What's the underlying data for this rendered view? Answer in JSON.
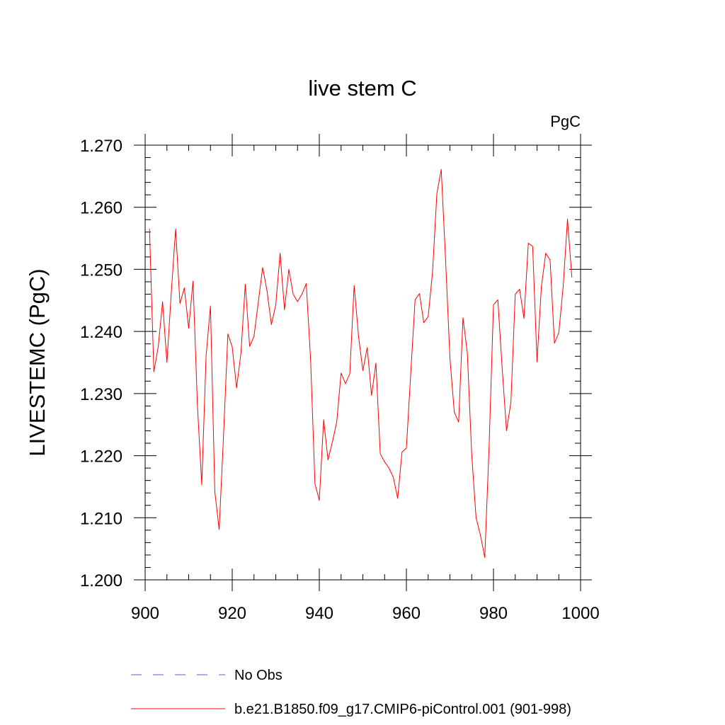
{
  "chart_data": {
    "type": "line",
    "title": "live stem C",
    "units_label": "PgC",
    "ylabel": "LIVESTEMC  (PgC)",
    "xlabel": "",
    "xlim": [
      900,
      1000
    ],
    "ylim": [
      1.2,
      1.27
    ],
    "x_ticks": [
      900,
      920,
      940,
      960,
      980,
      1000
    ],
    "y_ticks": [
      1.2,
      1.21,
      1.22,
      1.23,
      1.24,
      1.25,
      1.26,
      1.27
    ],
    "x_tick_labels": [
      "900",
      "920",
      "940",
      "960",
      "980",
      "1000"
    ],
    "y_tick_labels": [
      "1.200",
      "1.210",
      "1.220",
      "1.230",
      "1.240",
      "1.250",
      "1.260",
      "1.270"
    ],
    "grid": false,
    "legend_position": "bottom",
    "legend": [
      {
        "label": "No Obs",
        "color": "#6a5acd",
        "style": "dashed"
      },
      {
        "label": "b.e21.B1850.f09_g17.CMIP6-piControl.001 (901-998)",
        "color": "#ff0000",
        "style": "solid"
      }
    ],
    "series": [
      {
        "name": "b.e21.B1850.f09_g17.CMIP6-piControl.001 (901-998)",
        "color": "#ff0000",
        "x": [
          901,
          902,
          903,
          904,
          905,
          906,
          907,
          908,
          909,
          910,
          911,
          912,
          913,
          914,
          915,
          916,
          917,
          918,
          919,
          920,
          921,
          922,
          923,
          924,
          925,
          926,
          927,
          928,
          929,
          930,
          931,
          932,
          933,
          934,
          935,
          936,
          937,
          938,
          939,
          940,
          941,
          942,
          943,
          944,
          945,
          946,
          947,
          948,
          949,
          950,
          951,
          952,
          953,
          954,
          955,
          956,
          957,
          958,
          959,
          960,
          961,
          962,
          963,
          964,
          965,
          966,
          967,
          968,
          969,
          970,
          971,
          972,
          973,
          974,
          975,
          976,
          977,
          978,
          979,
          980,
          981,
          982,
          983,
          984,
          985,
          986,
          987,
          988,
          989,
          990,
          991,
          992,
          993,
          994,
          995,
          996,
          997,
          998
        ],
        "y": [
          1.2565,
          1.2335,
          1.2375,
          1.2448,
          1.235,
          1.2462,
          1.2565,
          1.2445,
          1.247,
          1.2405,
          1.2481,
          1.2282,
          1.2153,
          1.2361,
          1.2441,
          1.2142,
          1.2081,
          1.2232,
          1.2396,
          1.2375,
          1.2309,
          1.2365,
          1.2476,
          1.2376,
          1.2392,
          1.2448,
          1.2503,
          1.2465,
          1.2411,
          1.2443,
          1.2526,
          1.2435,
          1.25,
          1.246,
          1.2448,
          1.246,
          1.2477,
          1.2355,
          1.2155,
          1.2128,
          1.2258,
          1.2193,
          1.2222,
          1.2254,
          1.2333,
          1.2316,
          1.2332,
          1.2474,
          1.2393,
          1.2337,
          1.2374,
          1.2297,
          1.2349,
          1.2203,
          1.219,
          1.218,
          1.2165,
          1.2131,
          1.2206,
          1.2212,
          1.2333,
          1.2451,
          1.2461,
          1.2414,
          1.2424,
          1.2495,
          1.2622,
          1.2661,
          1.2515,
          1.2357,
          1.227,
          1.2254,
          1.2422,
          1.2365,
          1.2202,
          1.21,
          1.2072,
          1.2036,
          1.2216,
          1.2443,
          1.2451,
          1.234,
          1.224,
          1.2286,
          1.246,
          1.2468,
          1.2421,
          1.2542,
          1.2537,
          1.2351,
          1.2472,
          1.2526,
          1.2515,
          1.2381,
          1.2398,
          1.2472,
          1.2581,
          1.2487
        ]
      }
    ]
  }
}
